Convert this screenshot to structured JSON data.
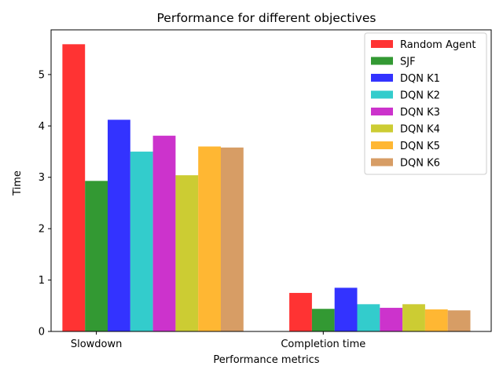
{
  "chart_data": {
    "type": "bar",
    "title": "Performance for different objectives",
    "xlabel": "Performance metrics",
    "ylabel": "Time",
    "categories": [
      "Slowdown",
      "Completion time"
    ],
    "ylim": [
      0,
      5.87
    ],
    "yticks": [
      0,
      1,
      2,
      3,
      4,
      5
    ],
    "bar_alpha": 0.8,
    "grid": false,
    "legend_position": "top-right",
    "series": [
      {
        "name": "Random Agent",
        "color": "#ff0000",
        "values": [
          5.59,
          0.75
        ]
      },
      {
        "name": "SJF",
        "color": "#008000",
        "values": [
          2.93,
          0.44
        ]
      },
      {
        "name": "DQN K1",
        "color": "#0000ff",
        "values": [
          4.12,
          0.85
        ]
      },
      {
        "name": "DQN K2",
        "color": "#00bfbf",
        "values": [
          3.5,
          0.53
        ]
      },
      {
        "name": "DQN K3",
        "color": "#bf00bf",
        "values": [
          3.81,
          0.46
        ]
      },
      {
        "name": "DQN K4",
        "color": "#bfbf00",
        "values": [
          3.04,
          0.53
        ]
      },
      {
        "name": "DQN K5",
        "color": "#ffa500",
        "values": [
          3.6,
          0.43
        ]
      },
      {
        "name": "DQN K6",
        "color": "#cd853f",
        "values": [
          3.58,
          0.41
        ]
      }
    ]
  }
}
